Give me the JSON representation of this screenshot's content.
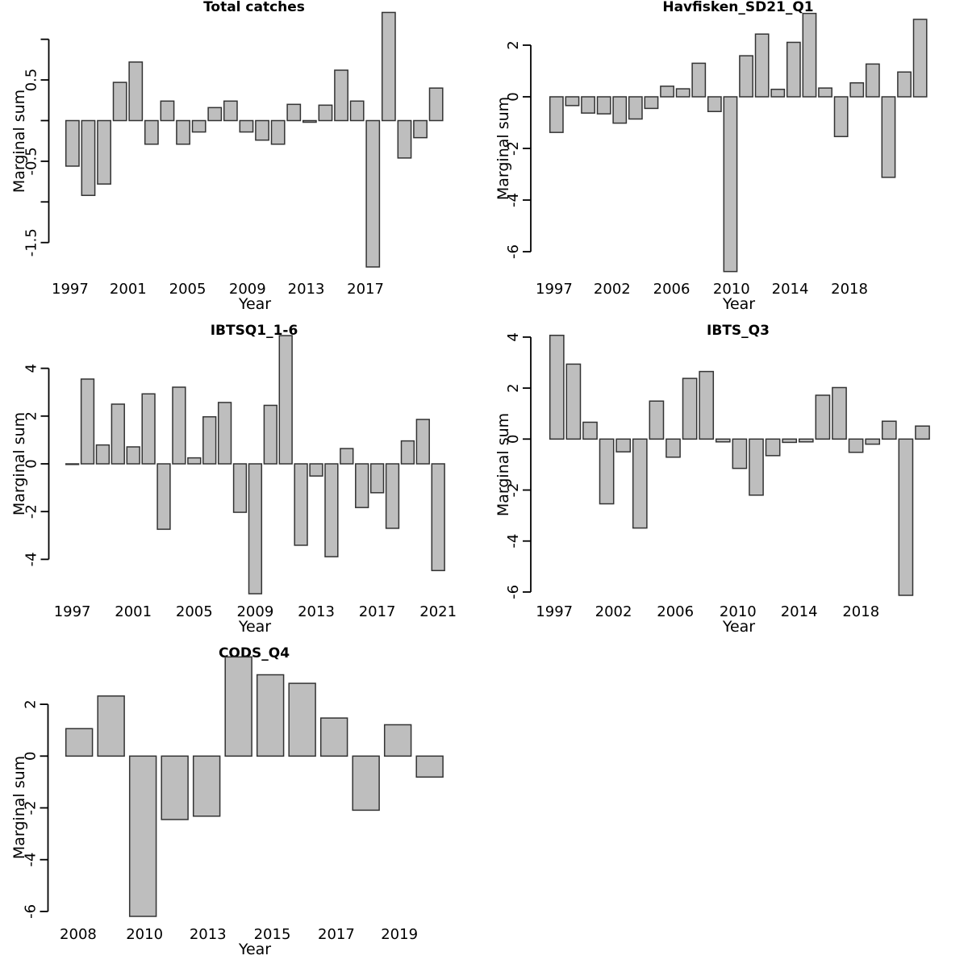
{
  "figure": {
    "background": "#ffffff"
  },
  "styles": {
    "bar_fill": "#bebebe",
    "bar_border": "#333333",
    "axis_color": "#000000",
    "text_color": "#000000"
  },
  "chart_data": [
    {
      "id": "total_catches",
      "type": "bar",
      "title": "Total catches",
      "xlabel": "Year",
      "ylabel": "Marginal sum",
      "grid": false,
      "ylim": [
        -1.9,
        1.4
      ],
      "categories": [
        1997,
        1998,
        1999,
        2000,
        2001,
        2002,
        2003,
        2004,
        2005,
        2006,
        2007,
        2008,
        2009,
        2010,
        2011,
        2012,
        2013,
        2014,
        2015,
        2016,
        2017,
        2018,
        2019,
        2020
      ],
      "values": [
        -0.56,
        -0.92,
        -0.78,
        0.47,
        0.72,
        -0.29,
        0.24,
        -0.29,
        -0.14,
        0.16,
        0.24,
        -0.14,
        -0.24,
        -0.29,
        0.2,
        -0.02,
        0.19,
        0.62,
        0.24,
        -1.8,
        1.33,
        -0.46,
        -0.21,
        0.4
      ],
      "yticks": [
        {
          "value": 1.0,
          "label": ""
        },
        {
          "value": 0.5,
          "label": "0.5"
        },
        {
          "value": 0.0,
          "label": ""
        },
        {
          "value": -0.5,
          "label": "-0.5"
        },
        {
          "value": -1.0,
          "label": ""
        },
        {
          "value": -1.5,
          "label": "-1.5"
        }
      ],
      "xticks": [
        {
          "label": "1997",
          "at_bar": 0.85
        },
        {
          "label": "2001",
          "at_bar": 4.52
        },
        {
          "label": "2005",
          "at_bar": 8.28
        },
        {
          "label": "2009",
          "at_bar": 12.07
        },
        {
          "label": "2013",
          "at_bar": 15.78
        },
        {
          "label": "2017",
          "at_bar": 19.53
        }
      ]
    },
    {
      "id": "havfisken_sd21_q1",
      "type": "bar",
      "title": "Havfisken_SD21_Q1",
      "xlabel": "Year",
      "ylabel": "Marginal sum",
      "grid": false,
      "ylim": [
        -6.9,
        3.35
      ],
      "categories": [
        1997,
        1998,
        1999,
        2000,
        2001,
        2002,
        2003,
        2004,
        2005,
        2006,
        2007,
        2008,
        2009,
        2010,
        2011,
        2012,
        2013,
        2014,
        2015,
        2016,
        2017,
        2018,
        2019,
        2020
      ],
      "values": [
        -1.38,
        -0.34,
        -0.63,
        -0.66,
        -1.02,
        -0.86,
        -0.45,
        0.41,
        0.31,
        1.3,
        -0.57,
        -6.77,
        1.59,
        2.43,
        0.29,
        2.11,
        3.23,
        0.34,
        -1.54,
        0.54,
        1.27,
        -3.12,
        0.96,
        3.0
      ],
      "yticks": [
        {
          "value": 2,
          "label": "2"
        },
        {
          "value": 0,
          "label": "0"
        },
        {
          "value": -2,
          "label": "-2"
        },
        {
          "value": -4,
          "label": "-4"
        },
        {
          "value": -6,
          "label": "-6"
        }
      ],
      "xticks": [
        {
          "label": "1997",
          "at_bar": 0.85
        },
        {
          "label": "2002",
          "at_bar": 4.52
        },
        {
          "label": "2006",
          "at_bar": 8.28
        },
        {
          "label": "2010",
          "at_bar": 12.07
        },
        {
          "label": "2014",
          "at_bar": 15.78
        },
        {
          "label": "2018",
          "at_bar": 19.53
        }
      ]
    },
    {
      "id": "ibtsq1_1_6",
      "type": "bar",
      "title": "IBTSQ1_1-6",
      "xlabel": "Year",
      "ylabel": "Marginal sum",
      "grid": false,
      "ylim": [
        -5.5,
        5.55
      ],
      "categories": [
        1997,
        1998,
        1999,
        2000,
        2001,
        2002,
        2003,
        2004,
        2005,
        2006,
        2007,
        2008,
        2009,
        2010,
        2011,
        2012,
        2013,
        2014,
        2015,
        2016,
        2017,
        2018,
        2019,
        2020,
        2021
      ],
      "values": [
        -0.02,
        3.55,
        0.79,
        2.5,
        0.71,
        2.93,
        -2.74,
        3.21,
        0.25,
        1.97,
        2.57,
        -2.03,
        -5.44,
        2.45,
        5.37,
        -3.41,
        -0.51,
        -3.89,
        0.64,
        -1.83,
        -1.21,
        -2.7,
        0.96,
        1.86,
        -4.47
      ],
      "yticks": [
        {
          "value": 4,
          "label": "4"
        },
        {
          "value": 2,
          "label": "2"
        },
        {
          "value": 0,
          "label": "0"
        },
        {
          "value": -2,
          "label": "-2"
        },
        {
          "value": -4,
          "label": "-4"
        }
      ],
      "xticks": [
        {
          "label": "1997",
          "at_bar": 1
        },
        {
          "label": "2001",
          "at_bar": 5
        },
        {
          "label": "2005",
          "at_bar": 9
        },
        {
          "label": "2009",
          "at_bar": 13
        },
        {
          "label": "2013",
          "at_bar": 17
        },
        {
          "label": "2017",
          "at_bar": 21
        },
        {
          "label": "2021",
          "at_bar": 25
        }
      ]
    },
    {
      "id": "ibts_q3",
      "type": "bar",
      "title": "IBTS_Q3",
      "xlabel": "Year",
      "ylabel": "Marginal sum",
      "grid": false,
      "ylim": [
        -6.15,
        4.15
      ],
      "categories": [
        1997,
        1998,
        1999,
        2000,
        2001,
        2002,
        2003,
        2004,
        2005,
        2006,
        2007,
        2008,
        2009,
        2010,
        2011,
        2012,
        2013,
        2014,
        2015,
        2016,
        2017,
        2018,
        2019
      ],
      "values": [
        4.07,
        2.94,
        0.66,
        -2.54,
        -0.5,
        -3.49,
        1.49,
        -0.71,
        2.38,
        2.65,
        -0.11,
        -1.15,
        -2.2,
        -0.65,
        -0.13,
        -0.11,
        1.72,
        2.02,
        -0.52,
        -0.2,
        0.7,
        -6.13,
        0.51
      ],
      "yticks": [
        {
          "value": 4,
          "label": "4"
        },
        {
          "value": 2,
          "label": "2"
        },
        {
          "value": 0,
          "label": "0"
        },
        {
          "value": -2,
          "label": "-2"
        },
        {
          "value": -4,
          "label": "-4"
        },
        {
          "value": -6,
          "label": "-6"
        }
      ],
      "xticks": [
        {
          "label": "1997",
          "at_bar": 0.85
        },
        {
          "label": "2002",
          "at_bar": 4.41
        },
        {
          "label": "2006",
          "at_bar": 8.13
        },
        {
          "label": "2010",
          "at_bar": 11.9
        },
        {
          "label": "2014",
          "at_bar": 15.58
        },
        {
          "label": "2018",
          "at_bar": 19.3
        }
      ]
    },
    {
      "id": "cods_q4",
      "type": "bar",
      "title": "CODS_Q4",
      "xlabel": "Year",
      "ylabel": "Marginal sum",
      "grid": false,
      "ylim": [
        -6.35,
        3.9
      ],
      "categories": [
        2008,
        2009,
        2010,
        2011,
        2012,
        2013,
        2014,
        2015,
        2016,
        2017,
        2018,
        2019
      ],
      "values": [
        1.06,
        2.32,
        -6.19,
        -2.45,
        -2.32,
        3.83,
        3.14,
        2.81,
        1.47,
        -2.09,
        1.21,
        -0.81
      ],
      "yticks": [
        {
          "value": 2,
          "label": "2"
        },
        {
          "value": 0,
          "label": "0"
        },
        {
          "value": -2,
          "label": "-2"
        },
        {
          "value": -4,
          "label": "-4"
        },
        {
          "value": -6,
          "label": "-6"
        }
      ],
      "xticks": [
        {
          "label": "2008",
          "at_bar": 0.97
        },
        {
          "label": "2010",
          "at_bar": 3.05
        },
        {
          "label": "2013",
          "at_bar": 5.04
        },
        {
          "label": "2015",
          "at_bar": 7.06
        },
        {
          "label": "2017",
          "at_bar": 9.07
        },
        {
          "label": "2019",
          "at_bar": 11.05
        }
      ]
    }
  ]
}
